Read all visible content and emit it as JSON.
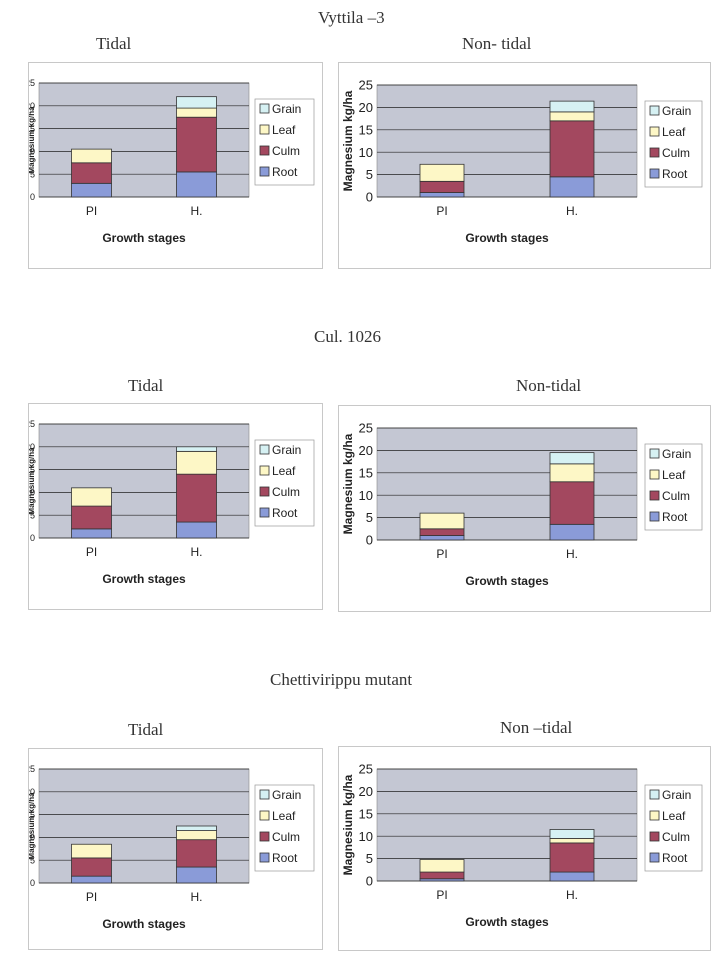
{
  "groups": [
    {
      "title": "Vyttila –3",
      "tidal_title": "Tidal",
      "nontidal_title": "Non- tidal"
    },
    {
      "title": "Cul. 1026",
      "tidal_title": "Tidal",
      "nontidal_title": "Non-tidal"
    },
    {
      "title": "Chettivirippu mutant",
      "tidal_title": "Tidal",
      "nontidal_title": "Non –tidal"
    }
  ],
  "colors": {
    "Root": "#8a9bd8",
    "Culm": "#a3485f",
    "Leaf": "#fdf7c6",
    "Grain": "#d6f1f3",
    "plot_bg": "#c4c7d3",
    "grid": "#222222"
  },
  "chart_data": [
    {
      "type": "bar",
      "stacked": true,
      "categories": [
        "PI",
        "H."
      ],
      "series": [
        {
          "name": "Root",
          "values": [
            3,
            5.5
          ]
        },
        {
          "name": "Culm",
          "values": [
            4.5,
            12
          ]
        },
        {
          "name": "Leaf",
          "values": [
            3,
            2
          ]
        },
        {
          "name": "Grain",
          "values": [
            0,
            2.5
          ]
        }
      ],
      "xlabel": "Growth stages",
      "ylabel": "Magnesium kg/ha",
      "ylim": [
        0,
        25
      ],
      "yticks": [
        "0",
        "5",
        "10",
        "15",
        "20",
        "25"
      ],
      "legend_order": [
        "Grain",
        "Leaf",
        "Culm",
        "Root"
      ],
      "grid": true,
      "legend_position": "right"
    },
    {
      "type": "bar",
      "stacked": true,
      "categories": [
        "PI",
        "H."
      ],
      "series": [
        {
          "name": "Root",
          "values": [
            1,
            4.5
          ]
        },
        {
          "name": "Culm",
          "values": [
            2.5,
            12.5
          ]
        },
        {
          "name": "Leaf",
          "values": [
            3.8,
            2
          ]
        },
        {
          "name": "Grain",
          "values": [
            0,
            2.4
          ]
        }
      ],
      "xlabel": "Growth stages",
      "ylabel": "Magnesium kg/ha",
      "ylim": [
        0,
        25
      ],
      "yticks": [
        "0",
        "5",
        "10",
        "15",
        "20",
        "25"
      ],
      "legend_order": [
        "Grain",
        "Leaf",
        "Culm",
        "Root"
      ],
      "grid": true,
      "legend_position": "right"
    },
    {
      "type": "bar",
      "stacked": true,
      "categories": [
        "PI",
        "H."
      ],
      "series": [
        {
          "name": "Root",
          "values": [
            2,
            3.5
          ]
        },
        {
          "name": "Culm",
          "values": [
            5,
            10.5
          ]
        },
        {
          "name": "Leaf",
          "values": [
            4,
            5
          ]
        },
        {
          "name": "Grain",
          "values": [
            0,
            1
          ]
        }
      ],
      "xlabel": "Growth stages",
      "ylabel": "Magnesium kg/ha",
      "ylim": [
        0,
        25
      ],
      "yticks": [
        "0",
        "5",
        "10",
        "15",
        "20",
        "25"
      ],
      "legend_order": [
        "Grain",
        "Leaf",
        "Culm",
        "Root"
      ],
      "grid": true,
      "legend_position": "right"
    },
    {
      "type": "bar",
      "stacked": true,
      "categories": [
        "PI",
        "H."
      ],
      "series": [
        {
          "name": "Root",
          "values": [
            1,
            3.5
          ]
        },
        {
          "name": "Culm",
          "values": [
            1.5,
            9.5
          ]
        },
        {
          "name": "Leaf",
          "values": [
            3.5,
            4
          ]
        },
        {
          "name": "Grain",
          "values": [
            0,
            2.5
          ]
        }
      ],
      "xlabel": "Growth stages",
      "ylabel": "Magnesium kg/ha",
      "ylim": [
        0,
        25
      ],
      "yticks": [
        "0",
        "5",
        "10",
        "15",
        "20",
        "25"
      ],
      "legend_order": [
        "Grain",
        "Leaf",
        "Culm",
        "Root"
      ],
      "grid": true,
      "legend_position": "right"
    },
    {
      "type": "bar",
      "stacked": true,
      "categories": [
        "PI",
        "H."
      ],
      "series": [
        {
          "name": "Root",
          "values": [
            1.5,
            3.5
          ]
        },
        {
          "name": "Culm",
          "values": [
            4,
            6
          ]
        },
        {
          "name": "Leaf",
          "values": [
            3,
            2
          ]
        },
        {
          "name": "Grain",
          "values": [
            0,
            1
          ]
        }
      ],
      "xlabel": "Growth stages",
      "ylabel": "Magnesium kg/ha",
      "ylim": [
        0,
        25
      ],
      "yticks": [
        "0",
        "5",
        "10",
        "15",
        "20",
        "25"
      ],
      "legend_order": [
        "Grain",
        "Leaf",
        "Culm",
        "Root"
      ],
      "grid": true,
      "legend_position": "right"
    },
    {
      "type": "bar",
      "stacked": true,
      "categories": [
        "PI",
        "H."
      ],
      "series": [
        {
          "name": "Root",
          "values": [
            0.5,
            2
          ]
        },
        {
          "name": "Culm",
          "values": [
            1.5,
            6.5
          ]
        },
        {
          "name": "Leaf",
          "values": [
            2.8,
            1
          ]
        },
        {
          "name": "Grain",
          "values": [
            0,
            2
          ]
        }
      ],
      "xlabel": "Growth stages",
      "ylabel": "Magnesium kg/ha",
      "ylim": [
        0,
        25
      ],
      "yticks": [
        "0",
        "5",
        "10",
        "15",
        "20",
        "25"
      ],
      "legend_order": [
        "Grain",
        "Leaf",
        "Culm",
        "Root"
      ],
      "grid": true,
      "legend_position": "right"
    }
  ]
}
